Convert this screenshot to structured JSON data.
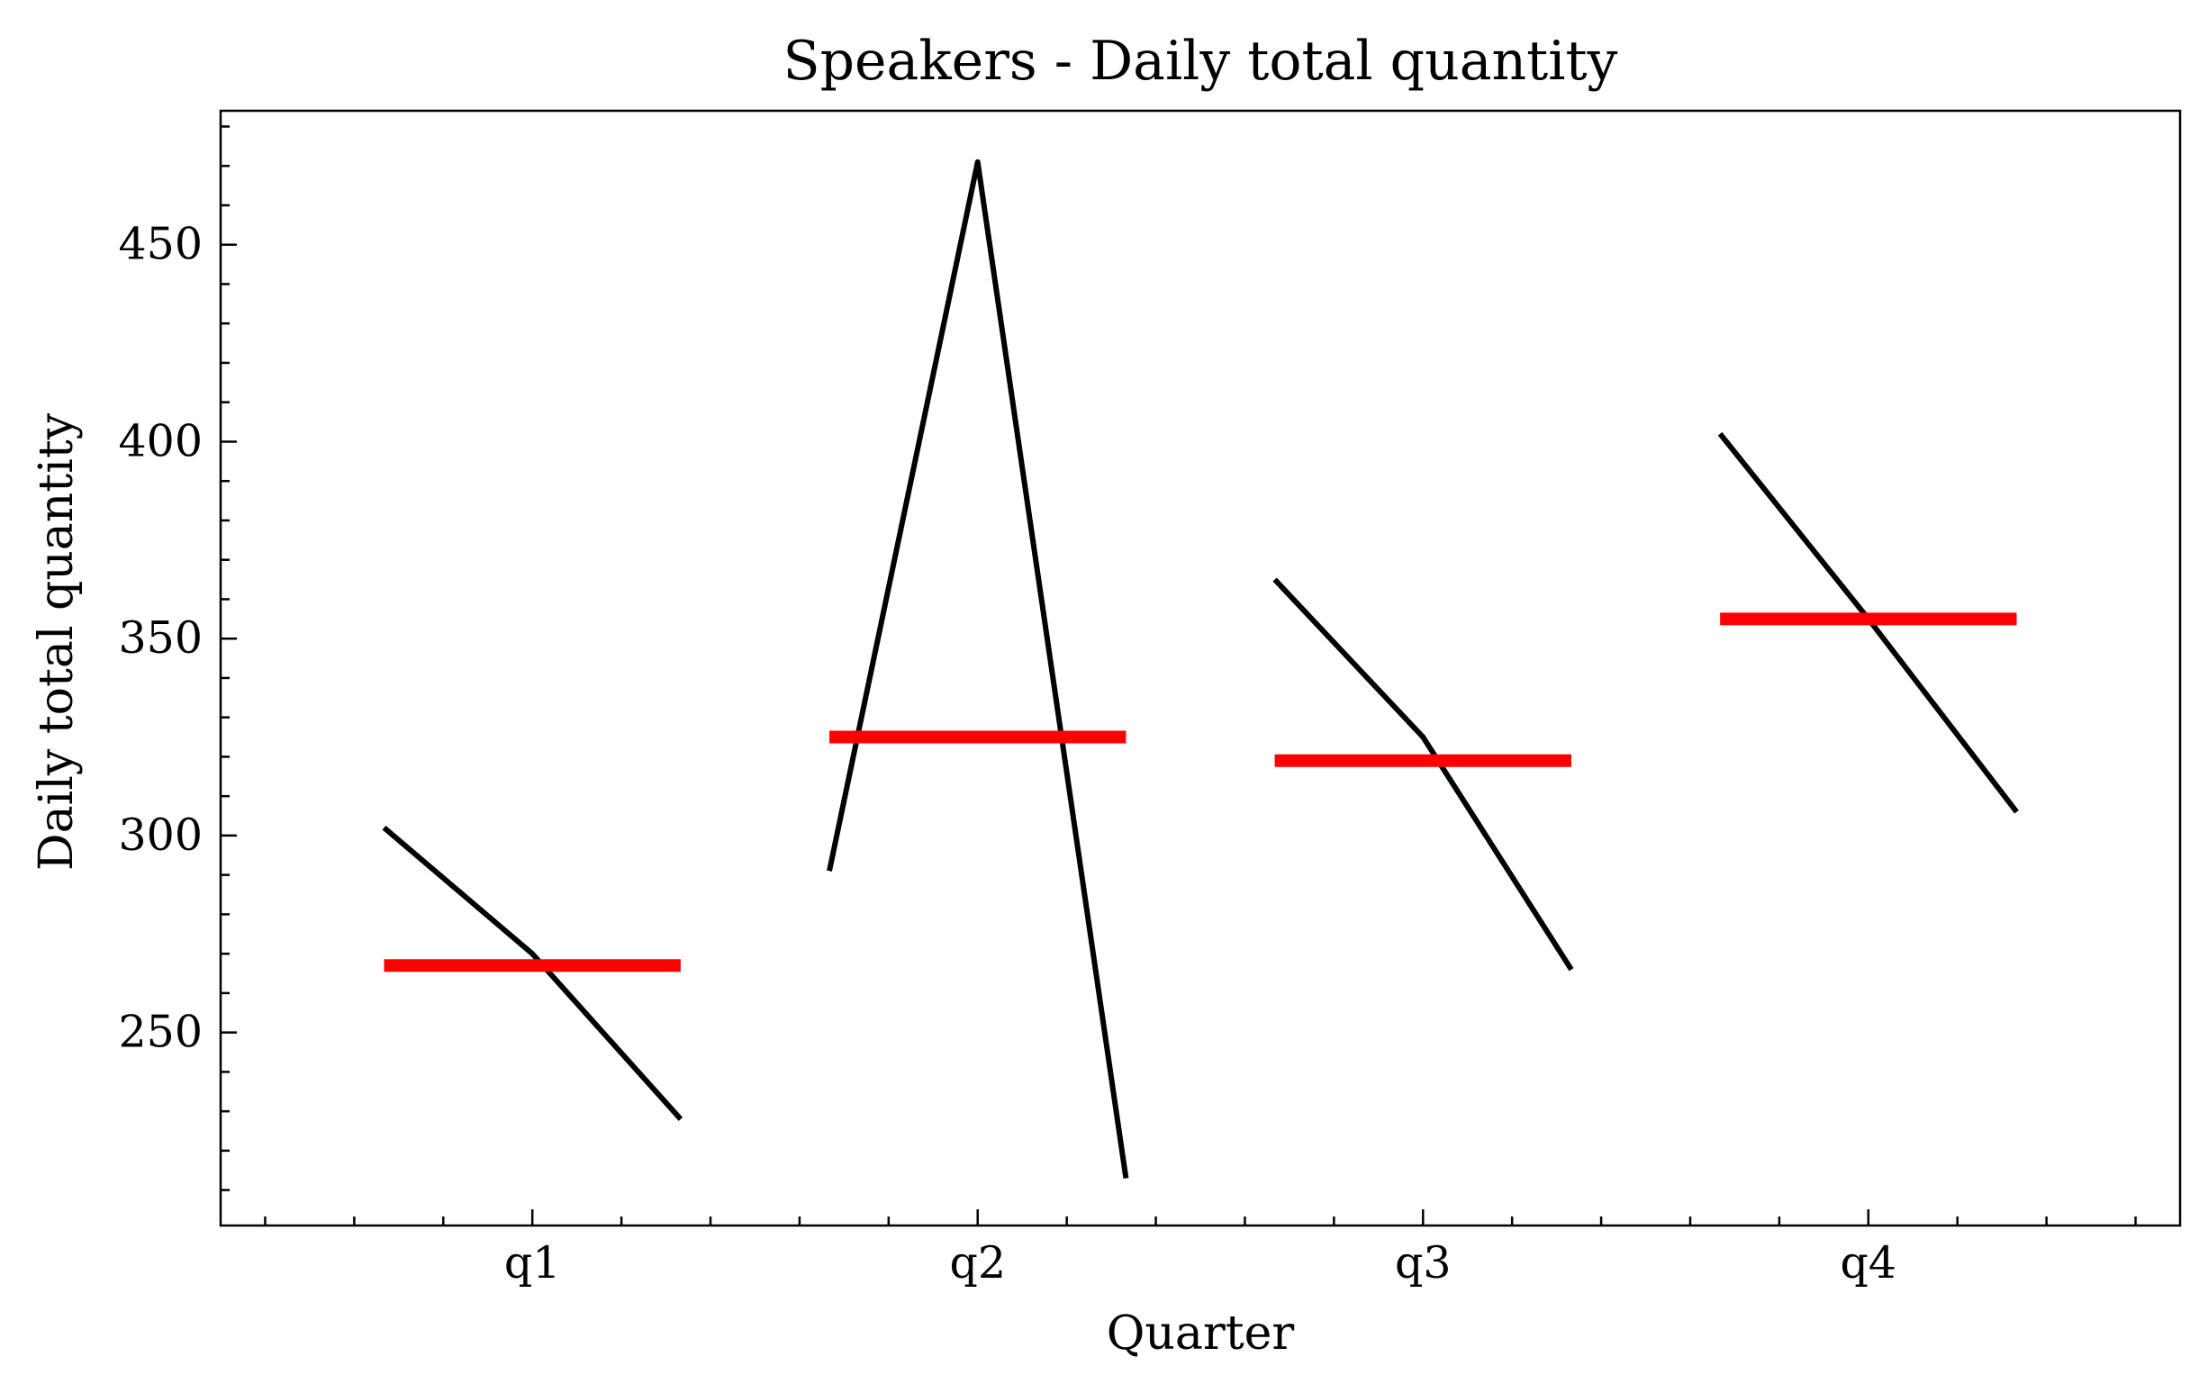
{
  "chart_data": {
    "type": "line",
    "title": "Speakers - Daily total quantity",
    "xlabel": "Quarter",
    "ylabel": "Daily total quantity",
    "categories": [
      "q1",
      "q2",
      "q3",
      "q4"
    ],
    "ylim": [
      201,
      484
    ],
    "yticks": [
      250,
      300,
      350,
      400,
      450
    ],
    "grid": false,
    "legend": "none",
    "groups": [
      {
        "category": "q1",
        "values": [
          302,
          270,
          228
        ],
        "mean": 267
      },
      {
        "category": "q2",
        "values": [
          291,
          471,
          213
        ],
        "mean": 325
      },
      {
        "category": "q3",
        "values": [
          365,
          325,
          266
        ],
        "mean": 319
      },
      {
        "category": "q4",
        "values": [
          402,
          355,
          306
        ],
        "mean": 355
      }
    ],
    "colors": {
      "series": "#000000",
      "mean": "#ff0000"
    }
  }
}
